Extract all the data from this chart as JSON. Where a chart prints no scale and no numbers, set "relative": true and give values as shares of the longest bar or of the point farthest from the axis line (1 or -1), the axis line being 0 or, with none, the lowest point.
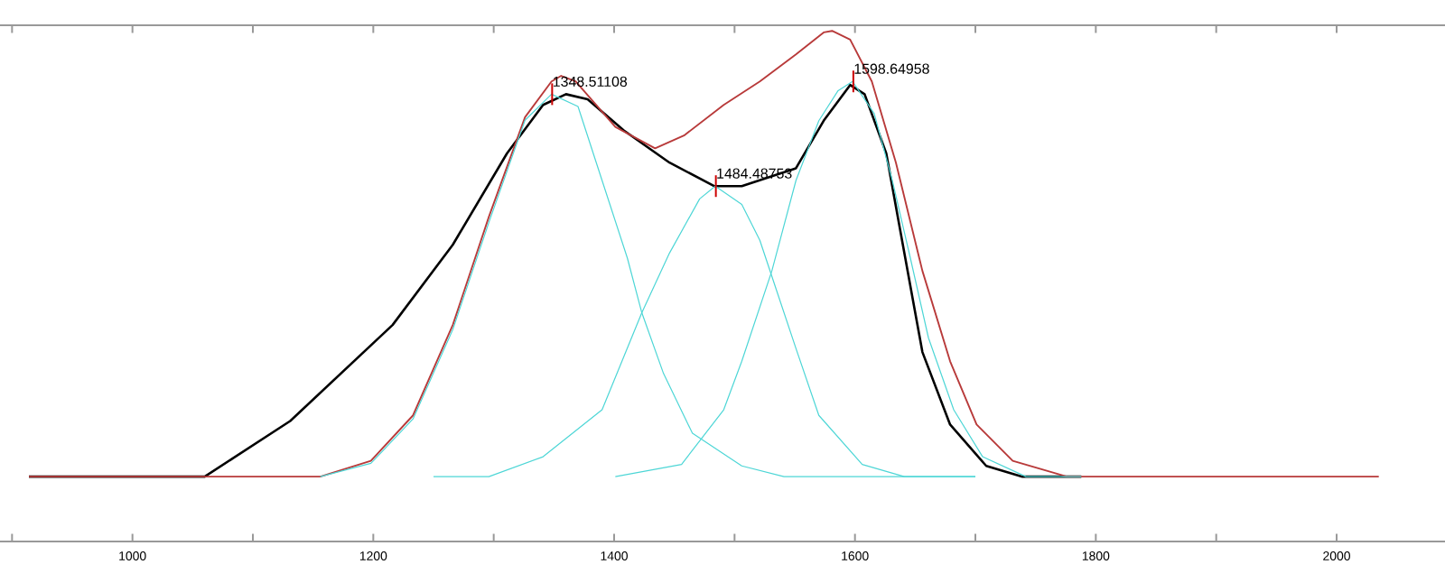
{
  "chart_data": {
    "type": "line",
    "relative": true,
    "xlim": [
      890,
      2090
    ],
    "xticks": [
      {
        "value": 900,
        "label": null
      },
      1000,
      {
        "value": 1100,
        "label": null
      },
      1200,
      {
        "value": 1300,
        "label": null
      },
      1400,
      {
        "value": 1500,
        "label": null
      },
      1600,
      {
        "value": 1700,
        "label": null
      },
      1800,
      {
        "value": 1900,
        "label": null
      },
      2000
    ],
    "marker": "none",
    "line_style": "solid",
    "series": [
      {
        "color": "#000000",
        "x": [
          914,
          1060,
          1131,
          1216,
          1266,
          1311,
          1341,
          1360,
          1378,
          1408,
          1446,
          1483,
          1506,
          1551,
          1574,
          1596,
          1608,
          1626,
          1641,
          1656,
          1679,
          1709,
          1739,
          1788
        ],
        "values": [
          0.127,
          0.127,
          0.236,
          0.424,
          0.581,
          0.76,
          0.855,
          0.876,
          0.866,
          0.805,
          0.742,
          0.696,
          0.696,
          0.731,
          0.824,
          0.894,
          0.876,
          0.76,
          0.565,
          0.371,
          0.229,
          0.148,
          0.127,
          0.127
        ]
      },
      {
        "color": "#b83a3a",
        "x": [
          914,
          1156,
          1198,
          1233,
          1266,
          1296,
          1326,
          1348,
          1356,
          1368,
          1401,
          1434,
          1458,
          1491,
          1521,
          1551,
          1574,
          1581,
          1596,
          1614,
          1634,
          1656,
          1679,
          1701,
          1731,
          1776,
          2035
        ],
        "values": [
          0.127,
          0.127,
          0.158,
          0.247,
          0.424,
          0.636,
          0.831,
          0.901,
          0.912,
          0.901,
          0.812,
          0.77,
          0.795,
          0.855,
          0.901,
          0.954,
          0.997,
          1.0,
          0.983,
          0.901,
          0.742,
          0.53,
          0.353,
          0.229,
          0.158,
          0.127,
          0.127
        ]
      },
      {
        "color": "#4dd6d6",
        "x": [
          1156,
          1198,
          1233,
          1266,
          1296,
          1326,
          1348,
          1370,
          1390,
          1411,
          1423,
          1441,
          1465,
          1506,
          1541,
          1700
        ],
        "values": [
          0.127,
          0.153,
          0.24,
          0.415,
          0.625,
          0.825,
          0.876,
          0.852,
          0.707,
          0.555,
          0.448,
          0.329,
          0.212,
          0.148,
          0.127,
          0.127
        ]
      },
      {
        "color": "#4dd6d6",
        "x": [
          1250,
          1296,
          1341,
          1390,
          1423,
          1446,
          1471,
          1484,
          1506,
          1521,
          1533,
          1551,
          1570,
          1606,
          1641,
          1700
        ],
        "values": [
          0.127,
          0.127,
          0.166,
          0.258,
          0.448,
          0.565,
          0.671,
          0.696,
          0.66,
          0.59,
          0.505,
          0.378,
          0.247,
          0.151,
          0.127,
          0.127
        ]
      },
      {
        "color": "#4dd6d6",
        "x": [
          1401,
          1456,
          1491,
          1506,
          1531,
          1551,
          1570,
          1586,
          1598,
          1616,
          1631,
          1646,
          1661,
          1682,
          1706,
          1742,
          1788
        ],
        "values": [
          0.127,
          0.151,
          0.258,
          0.353,
          0.53,
          0.707,
          0.824,
          0.883,
          0.901,
          0.838,
          0.707,
          0.555,
          0.399,
          0.258,
          0.166,
          0.127,
          0.127
        ]
      }
    ],
    "annotations": [
      {
        "text": "1348.51108",
        "x": 1348.51108,
        "y": 0.876
      },
      {
        "text": "1484.48753",
        "x": 1484.48753,
        "y": 0.696
      },
      {
        "text": "1598.64958",
        "x": 1598.64958,
        "y": 0.901
      }
    ]
  }
}
